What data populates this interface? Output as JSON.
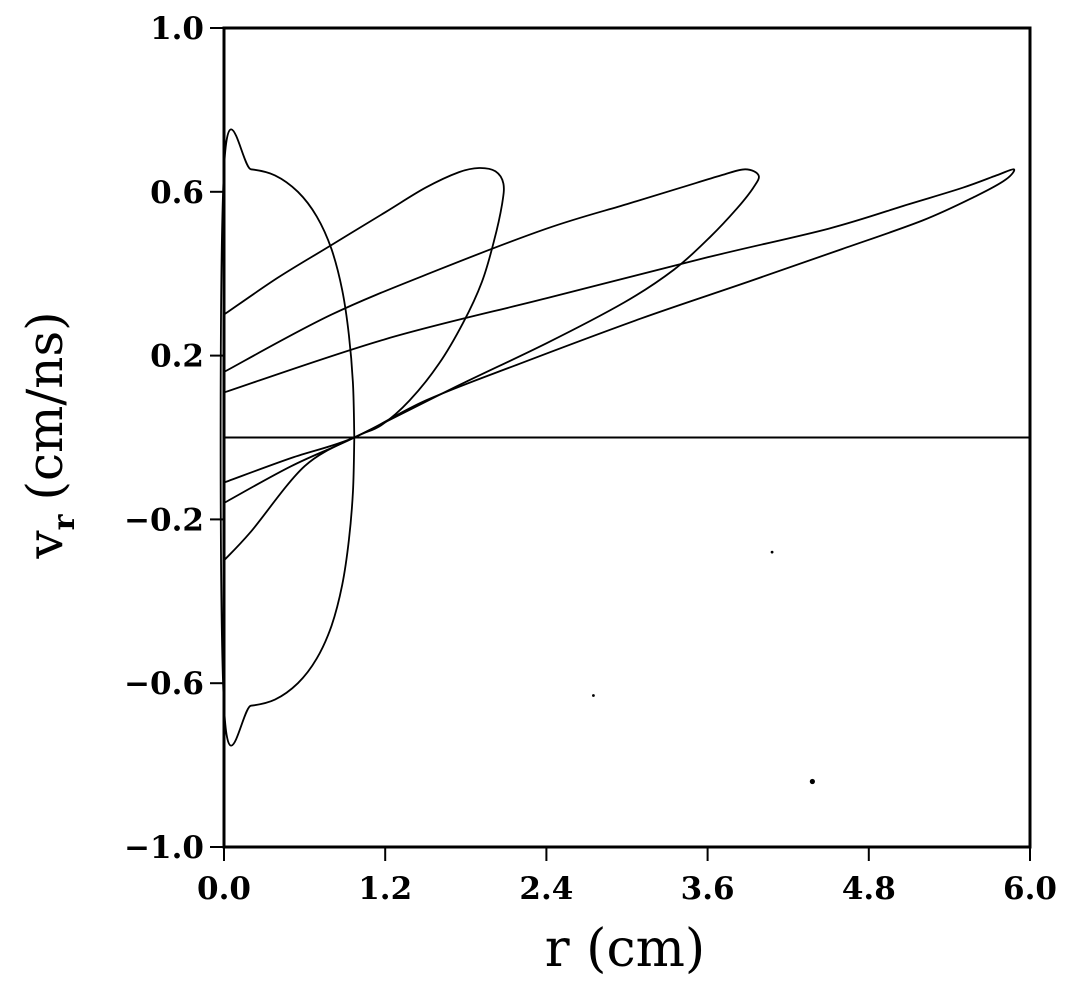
{
  "chart_data": {
    "type": "line",
    "title": "",
    "xlabel": "r (cm)",
    "ylabel_main": "v",
    "ylabel_sub": "r",
    "ylabel_unit": "(cm/ns)",
    "xlim": [
      0.0,
      6.0
    ],
    "ylim": [
      -1.0,
      1.0
    ],
    "x_ticks": [
      0.0,
      1.2,
      2.4,
      3.6,
      4.8,
      6.0
    ],
    "x_tick_labels": [
      "0.0",
      "1.2",
      "2.4",
      "3.6",
      "4.8",
      "6.0"
    ],
    "y_ticks": [
      1.0,
      0.6,
      0.2,
      -0.2,
      -0.6,
      -1.0
    ],
    "y_tick_labels": [
      "1.0",
      "0.6",
      "0.2",
      "−0.2",
      "−0.6",
      "−1.0"
    ],
    "grid": false,
    "legend": "none",
    "reference_lines": [
      {
        "orientation": "horizontal",
        "y": 0.0
      }
    ],
    "series": [
      {
        "x": [
          0.97,
          0.96,
          0.93,
          0.88,
          0.8,
          0.69,
          0.55,
          0.38,
          0.2,
          0.0,
          0.0,
          0.2,
          0.38,
          0.55,
          0.69,
          0.8,
          0.88,
          0.93,
          0.96,
          0.97
        ],
        "y": [
          0.0,
          0.13,
          0.25,
          0.36,
          0.46,
          0.54,
          0.6,
          0.64,
          0.655,
          0.655,
          -0.655,
          -0.655,
          -0.64,
          -0.6,
          -0.54,
          -0.46,
          -0.36,
          -0.25,
          -0.13,
          0.0
        ]
      },
      {
        "x": [
          0.0,
          0.4,
          0.8,
          1.2,
          1.5,
          1.75,
          1.9,
          2.02,
          2.08,
          2.07,
          2.01,
          1.92,
          1.78,
          1.6,
          1.38,
          1.17,
          0.97,
          0.6,
          0.2,
          0.0
        ],
        "y": [
          0.3,
          0.39,
          0.47,
          0.55,
          0.61,
          0.648,
          0.658,
          0.65,
          0.62,
          0.57,
          0.48,
          0.38,
          0.28,
          0.18,
          0.09,
          0.03,
          0.0,
          -0.07,
          -0.23,
          -0.3
        ]
      },
      {
        "x": [
          0.0,
          0.8,
          1.6,
          2.4,
          3.0,
          3.4,
          3.7,
          3.88,
          3.98,
          3.94,
          3.82,
          3.62,
          3.35,
          2.98,
          2.4,
          1.7,
          0.97,
          0.5,
          0.0
        ],
        "y": [
          0.16,
          0.3,
          0.41,
          0.51,
          0.57,
          0.61,
          0.64,
          0.655,
          0.64,
          0.61,
          0.56,
          0.49,
          0.41,
          0.33,
          0.23,
          0.12,
          0.0,
          -0.07,
          -0.16
        ]
      },
      {
        "x": [
          0.0,
          1.2,
          2.4,
          3.6,
          4.5,
          5.1,
          5.5,
          5.75,
          5.88,
          5.82,
          5.6,
          5.2,
          4.6,
          3.9,
          3.1,
          2.2,
          1.5,
          0.97,
          0.5,
          0.0
        ],
        "y": [
          0.11,
          0.24,
          0.34,
          0.44,
          0.51,
          0.57,
          0.61,
          0.64,
          0.655,
          0.63,
          0.59,
          0.53,
          0.46,
          0.38,
          0.29,
          0.18,
          0.09,
          0.0,
          -0.05,
          -0.11
        ]
      }
    ],
    "stray_points": [
      {
        "x": 2.75,
        "y": -0.63
      },
      {
        "x": 4.38,
        "y": -0.84
      },
      {
        "x": 4.08,
        "y": -0.28
      }
    ]
  }
}
